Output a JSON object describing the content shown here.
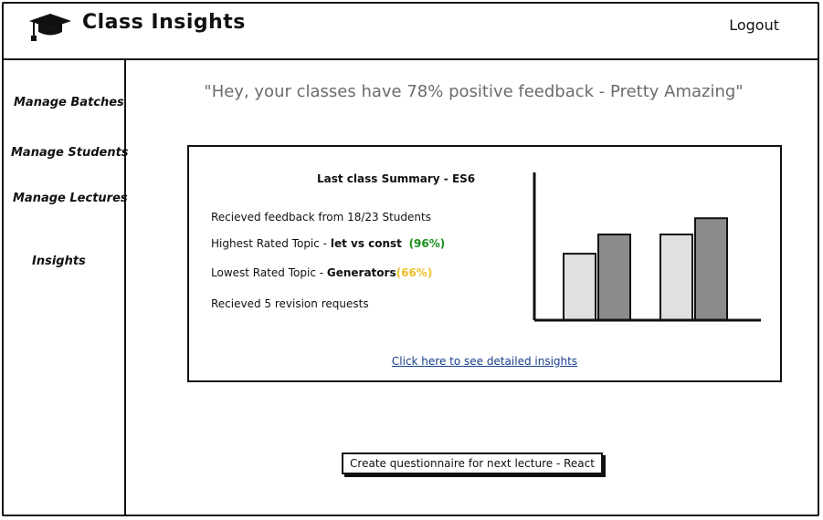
{
  "header": {
    "title": "Class Insights",
    "logout_label": "Logout",
    "logo_icon": "graduation-cap-icon"
  },
  "sidebar": {
    "items": [
      {
        "label": "Manage Batches"
      },
      {
        "label": "Manage Students"
      },
      {
        "label": "Manage Lectures"
      },
      {
        "label": "Insights"
      }
    ]
  },
  "main": {
    "quote": "\"Hey, your classes have 78% positive feedback - Pretty Amazing\"",
    "summary": {
      "title": "Last class Summary - ES6",
      "feedback_line": "Recieved feedback from 18/23 Students",
      "highest_prefix": "Highest Rated Topic - ",
      "highest_topic": "let vs const",
      "highest_pct": "(96%)",
      "lowest_prefix": "Lowest Rated Topic - ",
      "lowest_topic": "Generators",
      "lowest_pct": "(66%)",
      "revision_line": "Recieved 5 revision requests",
      "details_link": "Click here to see detailed insights"
    },
    "questionnaire_button": "Create questionnaire for next lecture - React"
  },
  "colors": {
    "highlight_green": "#1a8f1a",
    "highlight_yellow": "#f0bf2a",
    "link_blue": "#173e8c",
    "bar_light": "#e0e0e0",
    "bar_dark": "#8c8c8c"
  },
  "chart_data": {
    "type": "bar",
    "categories": [
      "",
      ""
    ],
    "series": [
      {
        "values": [
          45,
          58
        ]
      },
      {
        "values": [
          58,
          69
        ]
      }
    ],
    "ylim": [
      0,
      100
    ],
    "grid": false
  }
}
